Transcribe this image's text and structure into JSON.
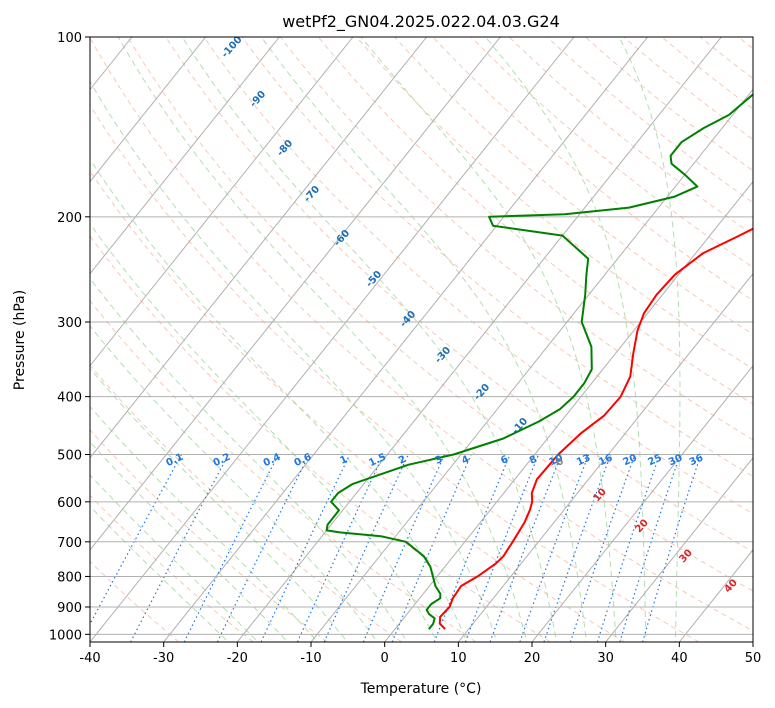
{
  "chart_data": {
    "type": "line",
    "title": "wetPf2_GN04.2025.022.04.03.G24",
    "xlabel": "Temperature (°C)",
    "ylabel": "Pressure (hPa)",
    "xlim": [
      -40,
      50
    ],
    "ylim": [
      1030,
      100
    ],
    "yscale": "log",
    "grid": true,
    "x_ticks": [
      -40,
      -30,
      -20,
      -10,
      0,
      10,
      20,
      30,
      40,
      50
    ],
    "y_ticks": [
      1000,
      900,
      800,
      700,
      600,
      500,
      400,
      300,
      200,
      100
    ],
    "isotherm_step": 10,
    "dry_adiabat_labels": [
      -100,
      -90,
      -80,
      -70,
      -60,
      -50,
      -40,
      -30,
      -20,
      -10,
      0,
      10,
      20,
      30,
      40
    ],
    "mixing_ratio_labels": [
      "0.1",
      "0.2",
      "0.4",
      "0.6",
      "1",
      "1.5",
      "2",
      "3",
      "4",
      "6",
      "8",
      "10",
      "13",
      "16",
      "20",
      "25",
      "30",
      "36"
    ],
    "colors": {
      "temperature": "#ff0000",
      "dewpoint": "#008000",
      "isotherm": "#b0b0b0",
      "dry_adiabat": "#f4a582",
      "moist_adiabat": "#7fc97f",
      "mixing_ratio": "#1f78e0",
      "label_cold": "#1f6fb4",
      "label_warm": "#d62728",
      "label_zero": "#808080"
    },
    "series": [
      {
        "role": "temperature",
        "points": [
          [
            6.8,
            980
          ],
          [
            5.5,
            960
          ],
          [
            4.8,
            935
          ],
          [
            5.0,
            900
          ],
          [
            4.5,
            870
          ],
          [
            4.3,
            830
          ],
          [
            5.5,
            800
          ],
          [
            6.6,
            760
          ],
          [
            6.8,
            740
          ],
          [
            6.5,
            700
          ],
          [
            6.0,
            650
          ],
          [
            5.4,
            620
          ],
          [
            4.8,
            600
          ],
          [
            3.8,
            580
          ],
          [
            3.0,
            550
          ],
          [
            3.2,
            500
          ],
          [
            4.0,
            460
          ],
          [
            5.2,
            430
          ],
          [
            5.4,
            400
          ],
          [
            4.5,
            370
          ],
          [
            2.5,
            340
          ],
          [
            0.5,
            310
          ],
          [
            -0.5,
            290
          ],
          [
            -0.8,
            270
          ],
          [
            -0.5,
            250
          ],
          [
            1.0,
            230
          ],
          [
            4.0,
            215
          ],
          [
            6.0,
            205
          ],
          [
            8.0,
            195
          ],
          [
            10.0,
            180
          ],
          [
            12.5,
            170
          ],
          [
            15.8,
            160
          ],
          [
            19.0,
            150
          ],
          [
            22.0,
            140
          ],
          [
            23.8,
            130
          ],
          [
            25.3,
            120
          ],
          [
            26.3,
            110
          ],
          [
            27.3,
            100
          ]
        ]
      },
      {
        "role": "dewpoint",
        "points": [
          [
            4.6,
            980
          ],
          [
            4.6,
            960
          ],
          [
            4.2,
            940
          ],
          [
            3.0,
            925
          ],
          [
            2.2,
            910
          ],
          [
            2.2,
            890
          ],
          [
            2.8,
            870
          ],
          [
            2.3,
            855
          ],
          [
            0.8,
            830
          ],
          [
            -2.0,
            770
          ],
          [
            -4.0,
            740
          ],
          [
            -8.0,
            700
          ],
          [
            -12.0,
            685
          ],
          [
            -18.0,
            675
          ],
          [
            -20.0,
            670
          ],
          [
            -20.5,
            655
          ],
          [
            -20.5,
            640
          ],
          [
            -20.5,
            620
          ],
          [
            -22.5,
            600
          ],
          [
            -22.5,
            580
          ],
          [
            -21.5,
            560
          ],
          [
            -16.0,
            520
          ],
          [
            -11.0,
            500
          ],
          [
            -6.0,
            470
          ],
          [
            -3.0,
            440
          ],
          [
            -1.5,
            420
          ],
          [
            -1.0,
            400
          ],
          [
            -1.0,
            380
          ],
          [
            -1.5,
            360
          ],
          [
            -4.0,
            330
          ],
          [
            -8.0,
            300
          ],
          [
            -10.5,
            270
          ],
          [
            -12.5,
            250
          ],
          [
            -14.0,
            235
          ],
          [
            -20.0,
            215
          ],
          [
            -30.5,
            207
          ],
          [
            -32.0,
            200
          ],
          [
            -22.0,
            198
          ],
          [
            -14.0,
            193
          ],
          [
            -9.0,
            185
          ],
          [
            -7.0,
            178
          ],
          [
            -10.0,
            170
          ],
          [
            -13.0,
            163
          ],
          [
            -14.0,
            158
          ],
          [
            -14.0,
            150
          ],
          [
            -12.5,
            142
          ],
          [
            -10.5,
            135
          ],
          [
            -9.5,
            125
          ],
          [
            -9.0,
            115
          ],
          [
            -7.5,
            105
          ],
          [
            -6.5,
            100
          ]
        ]
      }
    ]
  }
}
